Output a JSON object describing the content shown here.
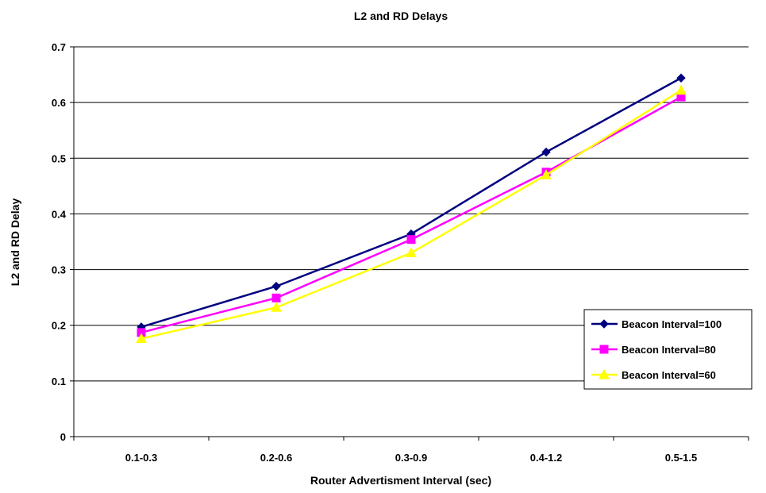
{
  "chart_data": {
    "type": "line",
    "title": "L2 and RD Delays",
    "xlabel": "Router Advertisment Interval (sec)",
    "ylabel": "L2 and RD Delay",
    "categories": [
      "0.1-0.3",
      "0.2-0.6",
      "0.3-0.9",
      "0.4-1.2",
      "0.5-1.5"
    ],
    "ylim": [
      0,
      0.7
    ],
    "yticks": [
      "0",
      "0.1",
      "0.2",
      "0.3",
      "0.4",
      "0.5",
      "0.6",
      "0.7"
    ],
    "grid": "horizontal",
    "legend_position": "right",
    "series": [
      {
        "name": "Beacon Interval=100",
        "color": "#000080",
        "marker": "diamond",
        "values": [
          0.197,
          0.27,
          0.364,
          0.511,
          0.644
        ]
      },
      {
        "name": "Beacon Interval=80",
        "color": "#ff00ff",
        "marker": "square",
        "values": [
          0.187,
          0.249,
          0.354,
          0.475,
          0.61
        ]
      },
      {
        "name": "Beacon Interval=60",
        "color": "#ffff00",
        "marker": "triangle",
        "values": [
          0.176,
          0.232,
          0.33,
          0.47,
          0.622
        ]
      }
    ]
  }
}
